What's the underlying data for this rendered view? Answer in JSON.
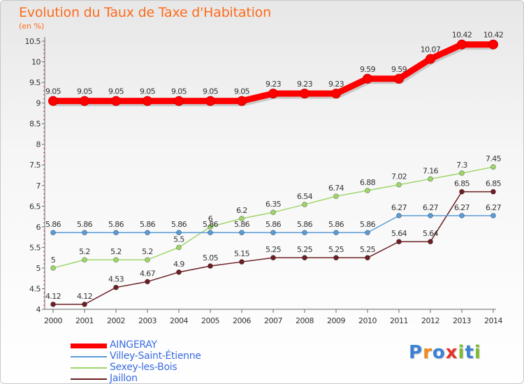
{
  "header": {
    "title": "Evolution du Taux de Taxe d'Habitation",
    "unit": "(en %)"
  },
  "logo": {
    "text": "Proxiti",
    "letters": [
      "P",
      "r",
      "o",
      "x",
      "i",
      "t",
      "i"
    ],
    "colors": [
      "#3b82d6",
      "#f08a1c",
      "#3b82d6",
      "#e8322b",
      "#7dbb2c",
      "#3b82d6",
      "#7dbb2c"
    ]
  },
  "chart_data": {
    "type": "line",
    "title": "Evolution du Taux de Taxe d'Habitation",
    "ylabel": "(en %)",
    "xlabel": "",
    "x": [
      "2000",
      "2001",
      "2002",
      "2003",
      "2004",
      "2005",
      "2006",
      "2007",
      "2008",
      "2009",
      "2010",
      "2011",
      "2012",
      "2013",
      "2014"
    ],
    "ylim": [
      4,
      10.5
    ],
    "yticks": [
      "4",
      "4.5",
      "5",
      "5.5",
      "6",
      "6.5",
      "7",
      "7.5",
      "8",
      "8.5",
      "9",
      "9.5",
      "10",
      "10.5"
    ],
    "grid": false,
    "legend_position": "bottom-left",
    "series": [
      {
        "name": "AINGERAY",
        "color": "#ff0000",
        "values": [
          9.05,
          9.05,
          9.05,
          9.05,
          9.05,
          9.05,
          9.05,
          9.23,
          9.23,
          9.23,
          9.59,
          9.59,
          10.07,
          10.42,
          10.42
        ],
        "labels": [
          "9.05",
          "9.05",
          "9.05",
          "9.05",
          "9.05",
          "9.05",
          "9.05",
          "9.23",
          "9.23",
          "9.23",
          "9.59",
          "9.59",
          "10.07",
          "10.42",
          "10.42"
        ]
      },
      {
        "name": "Villey-Saint-Étienne",
        "color": "#5b9bd5",
        "values": [
          5.86,
          5.86,
          5.86,
          5.86,
          5.86,
          5.86,
          5.86,
          5.86,
          5.86,
          5.86,
          5.86,
          6.27,
          6.27,
          6.27,
          6.27
        ],
        "labels": [
          "5.86",
          "5.86",
          "5.86",
          "5.86",
          "5.86",
          "5.86",
          "5.86",
          "5.86",
          "5.86",
          "5.86",
          "5.86",
          "6.27",
          "6.27",
          "6.27",
          "6.27"
        ]
      },
      {
        "name": "Sexey-les-Bois",
        "color": "#9ed66a",
        "values": [
          5,
          5.2,
          5.2,
          5.2,
          5.5,
          6,
          6.2,
          6.35,
          6.54,
          6.74,
          6.88,
          7.02,
          7.16,
          7.3,
          7.45
        ],
        "labels": [
          "5",
          "5.2",
          "5.2",
          "5.2",
          "5.5",
          "6",
          "6.2",
          "6.35",
          "6.54",
          "6.74",
          "6.88",
          "7.02",
          "7.16",
          "7.3",
          "7.45"
        ]
      },
      {
        "name": "Jaillon",
        "color": "#6b1f24",
        "values": [
          4.12,
          4.12,
          4.53,
          4.67,
          4.9,
          5.05,
          5.15,
          5.25,
          5.25,
          5.25,
          5.25,
          5.64,
          5.64,
          6.85,
          6.85
        ],
        "labels": [
          "4.12",
          "4.12",
          "4.53",
          "4.67",
          "4.9",
          "5.05",
          "5.15",
          "5.25",
          "5.25",
          "5.25",
          "5.25",
          "5.64",
          "5.64",
          "6.85",
          "6.85"
        ]
      }
    ]
  }
}
